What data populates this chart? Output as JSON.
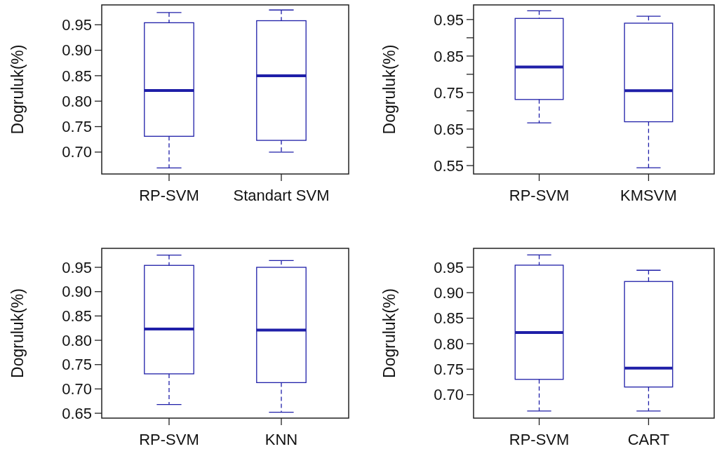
{
  "chart_data": [
    {
      "type": "box",
      "ylabel": "Dogruluk(%)",
      "categories": [
        "RP-SVM",
        "Standart SVM"
      ],
      "color": "#1f1fa8",
      "ylim": [
        0.657,
        0.989
      ],
      "yticks": [
        {
          "value": 0.7,
          "label": "0.70"
        },
        0.75,
        {
          "value": 0.8,
          "label": "0.80"
        },
        0.85,
        {
          "value": 0.9,
          "label": "0.90"
        },
        0.95
      ],
      "boxes": [
        {
          "low": 0.669,
          "q1": 0.731,
          "median": 0.821,
          "q3": 0.954,
          "high": 0.974
        },
        {
          "low": 0.7,
          "q1": 0.723,
          "median": 0.85,
          "q3": 0.958,
          "high": 0.979
        }
      ]
    },
    {
      "type": "box",
      "ylabel": "Dogruluk(%)",
      "categories": [
        "RP-SVM",
        "KMSVM"
      ],
      "color": "#1f1fa8",
      "ylim": [
        0.527,
        0.99
      ],
      "yticks": [
        0.55,
        {
          "value": 0.6,
          "label": null
        },
        0.65,
        {
          "value": 0.7,
          "label": null
        },
        0.75,
        {
          "value": 0.8,
          "label": null
        },
        0.85,
        {
          "value": 0.9,
          "label": null
        },
        0.95
      ],
      "boxes": [
        {
          "low": 0.667,
          "q1": 0.731,
          "median": 0.82,
          "q3": 0.953,
          "high": 0.974
        },
        {
          "low": 0.544,
          "q1": 0.67,
          "median": 0.755,
          "q3": 0.94,
          "high": 0.959
        }
      ]
    },
    {
      "type": "box",
      "ylabel": "Dogruluk(%)",
      "categories": [
        "RP-SVM",
        "KNN"
      ],
      "color": "#1f1fa8",
      "ylim": [
        0.64,
        0.989
      ],
      "yticks": [
        0.65,
        {
          "value": 0.7,
          "label": "0.70"
        },
        0.75,
        {
          "value": 0.8,
          "label": "0.80"
        },
        0.85,
        {
          "value": 0.9,
          "label": "0.90"
        },
        0.95
      ],
      "boxes": [
        {
          "low": 0.668,
          "q1": 0.731,
          "median": 0.823,
          "q3": 0.954,
          "high": 0.975
        },
        {
          "low": 0.652,
          "q1": 0.713,
          "median": 0.821,
          "q3": 0.95,
          "high": 0.964
        }
      ]
    },
    {
      "type": "box",
      "ylabel": "Dogruluk(%)",
      "categories": [
        "RP-SVM",
        "CART"
      ],
      "color": "#1f1fa8",
      "ylim": [
        0.654,
        0.987
      ],
      "yticks": [
        {
          "value": 0.7,
          "label": "0.70"
        },
        0.75,
        {
          "value": 0.8,
          "label": "0.80"
        },
        0.85,
        {
          "value": 0.9,
          "label": "0.90"
        },
        0.95
      ],
      "boxes": [
        {
          "low": 0.668,
          "q1": 0.73,
          "median": 0.822,
          "q3": 0.954,
          "high": 0.974
        },
        {
          "low": 0.668,
          "q1": 0.715,
          "median": 0.752,
          "q3": 0.922,
          "high": 0.944
        }
      ]
    }
  ]
}
